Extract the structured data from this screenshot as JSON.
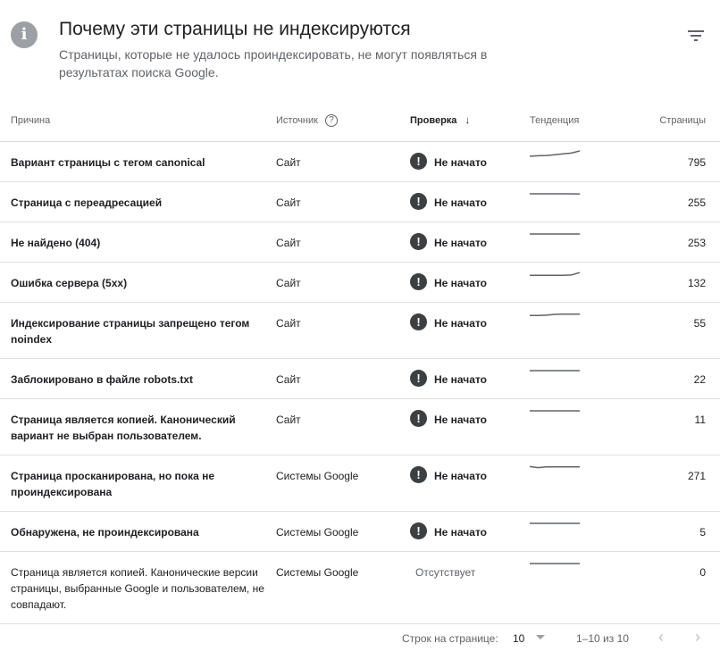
{
  "header": {
    "title": "Почему эти страницы не индексируются",
    "subtitle": "Страницы, которые не удалось проиндексировать, не могут появляться в результатах поиска Google.",
    "info_icon": "info-icon",
    "filter_icon": "filter-icon"
  },
  "columns": {
    "reason": "Причина",
    "source": "Источник",
    "check": "Проверка",
    "trend": "Тенденция",
    "pages": "Страницы"
  },
  "colors": {
    "status_icon": "#3c4043",
    "trend_line": "#5f6368"
  },
  "rows": [
    {
      "reason": "Вариант страницы с тегом canonical",
      "source": "Сайт",
      "check": "Не начато",
      "pages": "795",
      "trend": [
        0,
        0.1,
        0.15,
        0.3,
        0.45,
        0.6,
        1
      ]
    },
    {
      "reason": "Страница с переадресацией",
      "source": "Сайт",
      "check": "Не начато",
      "pages": "255",
      "trend": [
        0.5,
        0.5,
        0.5,
        0.5,
        0.5,
        0.5,
        0.45
      ]
    },
    {
      "reason": "Не найдено (404)",
      "source": "Сайт",
      "check": "Не начато",
      "pages": "253",
      "trend": [
        0.5,
        0.5,
        0.5,
        0.5,
        0.5,
        0.5,
        0.5
      ]
    },
    {
      "reason": "Ошибка сервера (5xx)",
      "source": "Сайт",
      "check": "Не начато",
      "pages": "132",
      "trend": [
        0.3,
        0.3,
        0.3,
        0.3,
        0.3,
        0.35,
        0.8
      ]
    },
    {
      "reason": "Индексирование страницы запрещено тегом noindex",
      "source": "Сайт",
      "check": "Не начато",
      "pages": "55",
      "trend": [
        0.3,
        0.3,
        0.35,
        0.5,
        0.55,
        0.55,
        0.55
      ]
    },
    {
      "reason": "Заблокировано в файле robots.txt",
      "source": "Сайт",
      "check": "Не начато",
      "pages": "22",
      "trend": [
        0.5,
        0.5,
        0.5,
        0.5,
        0.5,
        0.5,
        0.5
      ]
    },
    {
      "reason": "Страница является копией. Канонический вариант не выбран пользователем.",
      "source": "Сайт",
      "check": "Не начато",
      "pages": "11",
      "trend": [
        0.5,
        0.5,
        0.5,
        0.5,
        0.5,
        0.5,
        0.5
      ]
    },
    {
      "reason": "Страница просканирована, но пока не проиндексирована",
      "source": "Системы Google",
      "check": "Не начато",
      "pages": "271",
      "trend": [
        0.6,
        0.4,
        0.55,
        0.55,
        0.55,
        0.55,
        0.55
      ]
    },
    {
      "reason": "Обнаружена, не проиндексирована",
      "source": "Системы Google",
      "check": "Не начато",
      "pages": "5",
      "trend": [
        0.5,
        0.5,
        0.5,
        0.5,
        0.5,
        0.5,
        0.5
      ]
    },
    {
      "reason": "Страница является копией. Канонические версии страницы, выбранные Google и пользователем, не совпадают.",
      "source": "Системы Google",
      "check": "Отсутствует",
      "pages": "0",
      "trend": [
        0.5,
        0.5,
        0.5,
        0.5,
        0.5,
        0.5,
        0.5
      ],
      "no_status": true
    }
  ],
  "footer": {
    "rows_label": "Строк на странице:",
    "rows_value": "10",
    "range": "1–10 из 10"
  }
}
